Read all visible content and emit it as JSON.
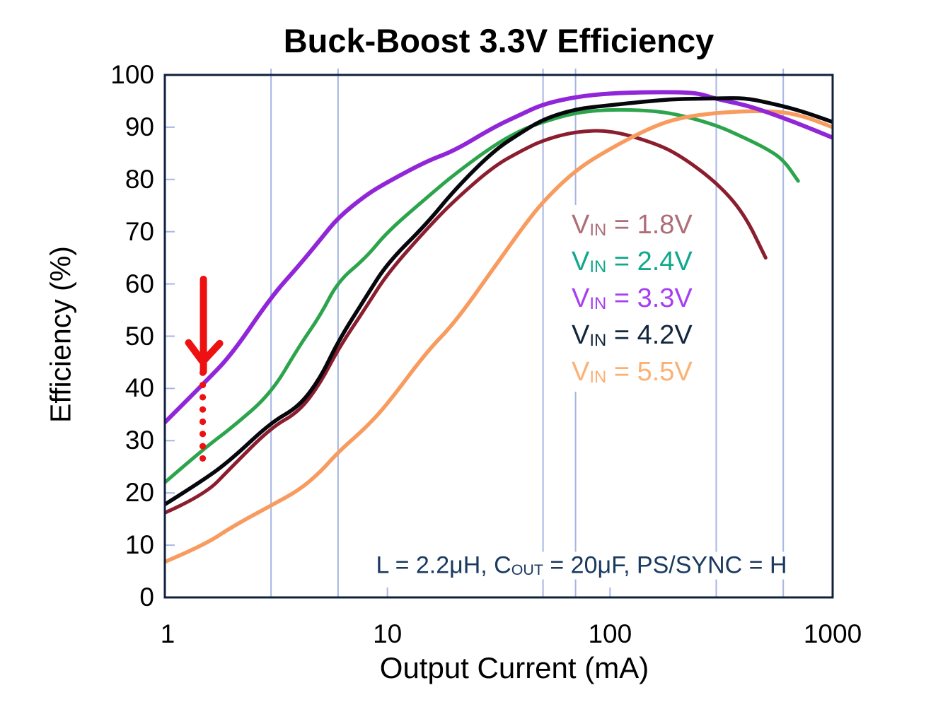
{
  "title": "Buck-Boost 3.3V Efficiency",
  "chart_data": {
    "type": "line",
    "title": "Buck-Boost 3.3V Efficiency",
    "x_axis": {
      "label": "Output Current (mA)",
      "scale": "log",
      "min": 1,
      "max": 1000,
      "tick_values": [
        1,
        10,
        100,
        1000
      ],
      "tick_labels": [
        "1",
        "10",
        "100",
        "1000"
      ],
      "inner_minor_tick_values": [
        10,
        100
      ]
    },
    "y_axis": {
      "label": "Efficiency (%)",
      "min": 0,
      "max": 100,
      "tick_values": [
        0,
        10,
        20,
        30,
        40,
        50,
        60,
        70,
        80,
        90,
        100
      ]
    },
    "grid": {
      "vertical_line_values": [
        3,
        6,
        50,
        70,
        300,
        600
      ],
      "horizontal_lines": false,
      "color": "#A6B6E4"
    },
    "frame_color": "#10203D",
    "background": "#FFFFFF",
    "legend_position": "center-right",
    "series": [
      {
        "legend_text": "VIN = 1.8V",
        "sym_main": "V",
        "sym_sub": "IN",
        "sym_eq": " = ",
        "value_label": "1.8V",
        "line_color": "#8A1E2E",
        "legend_color": "#AE6E78",
        "line_width": 5,
        "points": [
          [
            1,
            16.2
          ],
          [
            1.5,
            19.5
          ],
          [
            2,
            25
          ],
          [
            3,
            32.5
          ],
          [
            4,
            35.5
          ],
          [
            5,
            41
          ],
          [
            6,
            47.5
          ],
          [
            8,
            55.5
          ],
          [
            10,
            62
          ],
          [
            15,
            70.5
          ],
          [
            20,
            76
          ],
          [
            30,
            82.5
          ],
          [
            40,
            85.5
          ],
          [
            50,
            87.5
          ],
          [
            70,
            89.2
          ],
          [
            100,
            89.4
          ],
          [
            150,
            87.3
          ],
          [
            200,
            85
          ],
          [
            300,
            79.5
          ],
          [
            400,
            73.5
          ],
          [
            500,
            65
          ]
        ]
      },
      {
        "legend_text": "VIN = 2.4V",
        "sym_main": "V",
        "sym_sub": "IN",
        "sym_eq": " = ",
        "value_label": "2.4V",
        "line_color": "#2CA44C",
        "legend_color": "#10A88C",
        "line_width": 5,
        "points": [
          [
            1,
            22
          ],
          [
            1.5,
            28.5
          ],
          [
            2,
            32.5
          ],
          [
            3,
            39
          ],
          [
            4,
            48
          ],
          [
            5,
            54
          ],
          [
            6,
            60.5
          ],
          [
            8,
            65
          ],
          [
            10,
            70
          ],
          [
            15,
            76.5
          ],
          [
            20,
            81
          ],
          [
            30,
            86.5
          ],
          [
            40,
            89.5
          ],
          [
            50,
            91
          ],
          [
            70,
            92.8
          ],
          [
            100,
            93.4
          ],
          [
            150,
            93.2
          ],
          [
            200,
            92.5
          ],
          [
            300,
            90.4
          ],
          [
            400,
            88
          ],
          [
            500,
            86
          ],
          [
            600,
            83.8
          ],
          [
            700,
            79.7
          ]
        ]
      },
      {
        "legend_text": "VIN = 3.3V",
        "sym_main": "V",
        "sym_sub": "IN",
        "sym_eq": " = ",
        "value_label": "3.3V",
        "line_color": "#9126D9",
        "legend_color": "#A63FF0",
        "line_width": 6,
        "points": [
          [
            1,
            33.5
          ],
          [
            1.5,
            41
          ],
          [
            2,
            46.5
          ],
          [
            3,
            57.5
          ],
          [
            4,
            63.5
          ],
          [
            5,
            68.5
          ],
          [
            6,
            72.7
          ],
          [
            8,
            77
          ],
          [
            10,
            79.5
          ],
          [
            15,
            83.5
          ],
          [
            20,
            85.5
          ],
          [
            30,
            90
          ],
          [
            40,
            92.5
          ],
          [
            50,
            94.4
          ],
          [
            70,
            95.8
          ],
          [
            100,
            96.5
          ],
          [
            150,
            96.7
          ],
          [
            200,
            96.7
          ],
          [
            250,
            96.5
          ],
          [
            300,
            95.4
          ],
          [
            400,
            94.3
          ],
          [
            500,
            93
          ],
          [
            700,
            90.7
          ],
          [
            1000,
            88
          ]
        ]
      },
      {
        "legend_text": "VIN = 4.2V",
        "sym_main": "V",
        "sym_sub": "IN",
        "sym_eq": " = ",
        "value_label": "4.2V",
        "line_color": "#05070D",
        "legend_color": "#12263E",
        "line_width": 5.5,
        "points": [
          [
            1,
            17.8
          ],
          [
            1.5,
            22.5
          ],
          [
            2,
            26.5
          ],
          [
            3,
            33.5
          ],
          [
            4,
            36.5
          ],
          [
            5,
            42
          ],
          [
            6,
            49
          ],
          [
            8,
            57.5
          ],
          [
            10,
            64
          ],
          [
            15,
            71.5
          ],
          [
            20,
            78
          ],
          [
            30,
            85.5
          ],
          [
            40,
            89
          ],
          [
            50,
            91.5
          ],
          [
            70,
            93.5
          ],
          [
            100,
            94.2
          ],
          [
            150,
            95
          ],
          [
            200,
            95.4
          ],
          [
            300,
            95.5
          ],
          [
            400,
            95.6
          ],
          [
            500,
            94.8
          ],
          [
            700,
            93.3
          ],
          [
            1000,
            91
          ]
        ]
      },
      {
        "legend_text": "VIN = 5.5V",
        "sym_main": "V",
        "sym_sub": "IN",
        "sym_eq": " = ",
        "value_label": "5.5V",
        "line_color": "#F89B5F",
        "legend_color": "#FBB174",
        "line_width": 5.5,
        "points": [
          [
            1,
            6.8
          ],
          [
            1.5,
            10
          ],
          [
            2,
            13.5
          ],
          [
            3,
            17.6
          ],
          [
            4,
            20.5
          ],
          [
            5,
            24
          ],
          [
            6,
            27.8
          ],
          [
            8,
            32.5
          ],
          [
            10,
            37
          ],
          [
            15,
            47
          ],
          [
            20,
            52.5
          ],
          [
            30,
            63
          ],
          [
            40,
            70.5
          ],
          [
            50,
            75.8
          ],
          [
            70,
            81.8
          ],
          [
            100,
            85.9
          ],
          [
            150,
            89.8
          ],
          [
            200,
            91.7
          ],
          [
            300,
            92.8
          ],
          [
            500,
            93.2
          ],
          [
            700,
            92.5
          ],
          [
            1000,
            90
          ]
        ]
      }
    ],
    "draw_order": [
      0,
      1,
      4,
      2,
      3
    ],
    "annotation": {
      "prefix": "L = 2.2μH, C",
      "sub": "OUT",
      "suffix": " = 20μF, PS/SYNC = H",
      "full_text": "L = 2.2μH, COUT = 20μF, PS/SYNC = H",
      "color": "#1A3A60"
    },
    "marker_arrow": {
      "description": "hand-drawn red arrow pointing down at purple curve with red dotted line below",
      "color": "#ED1111",
      "x_value_mA": 1.48,
      "shaft_top_eff": 60.9,
      "tip_eff": 45.1,
      "dotted_top_eff": 43,
      "dotted_bottom_eff": 26.6,
      "dot_count": 8
    }
  }
}
